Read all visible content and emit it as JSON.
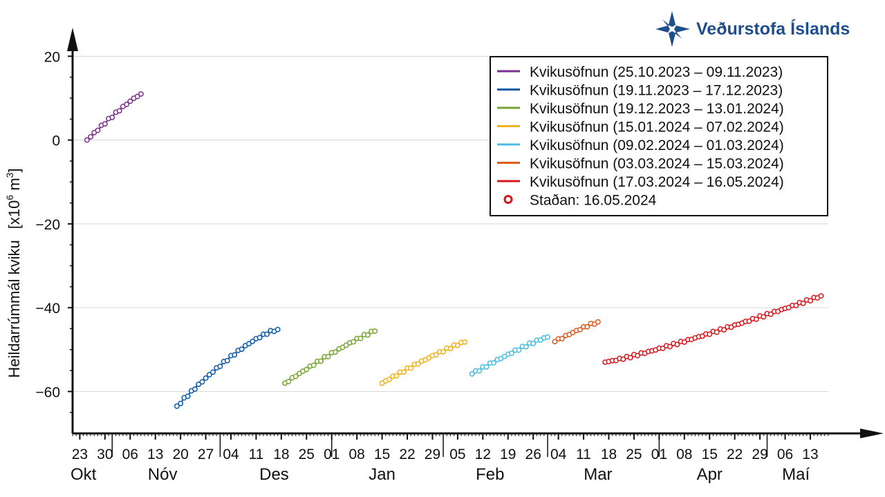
{
  "logo": {
    "text": "Veðurstofa Íslands",
    "color": "#1f4e8c"
  },
  "chart_data": {
    "type": "line",
    "ylabel_main": "Heildarrúmmál kviku",
    "ylabel_unit_prefix": "[x10",
    "ylabel_unit_exp": "6",
    "ylabel_unit_mid": " m",
    "ylabel_unit_exp2": "3",
    "ylabel_unit_suffix": "]",
    "ylim": [
      -70,
      26
    ],
    "yticks": [
      20,
      0,
      -20,
      -40,
      -60
    ],
    "ytick_labels": [
      "20",
      "0",
      "−20",
      "−40",
      "−60"
    ],
    "xlim": [
      "2023-10-21",
      "2024-05-18"
    ],
    "xticks": [
      {
        "date": "2023-10-23",
        "label": "23"
      },
      {
        "date": "2023-10-30",
        "label": "30"
      },
      {
        "date": "2023-11-06",
        "label": "06"
      },
      {
        "date": "2023-11-13",
        "label": "13"
      },
      {
        "date": "2023-11-20",
        "label": "20"
      },
      {
        "date": "2023-11-27",
        "label": "27"
      },
      {
        "date": "2023-12-04",
        "label": "04"
      },
      {
        "date": "2023-12-11",
        "label": "11"
      },
      {
        "date": "2023-12-18",
        "label": "18"
      },
      {
        "date": "2023-12-25",
        "label": "25"
      },
      {
        "date": "2024-01-01",
        "label": "01"
      },
      {
        "date": "2024-01-08",
        "label": "08"
      },
      {
        "date": "2024-01-15",
        "label": "15"
      },
      {
        "date": "2024-01-22",
        "label": "22"
      },
      {
        "date": "2024-01-29",
        "label": "29"
      },
      {
        "date": "2024-02-05",
        "label": "05"
      },
      {
        "date": "2024-02-12",
        "label": "12"
      },
      {
        "date": "2024-02-19",
        "label": "19"
      },
      {
        "date": "2024-02-26",
        "label": "26"
      },
      {
        "date": "2024-03-04",
        "label": "04"
      },
      {
        "date": "2024-03-11",
        "label": "11"
      },
      {
        "date": "2024-03-18",
        "label": "18"
      },
      {
        "date": "2024-03-25",
        "label": "25"
      },
      {
        "date": "2024-04-01",
        "label": "01"
      },
      {
        "date": "2024-04-08",
        "label": "08"
      },
      {
        "date": "2024-04-15",
        "label": "15"
      },
      {
        "date": "2024-04-22",
        "label": "22"
      },
      {
        "date": "2024-04-29",
        "label": "29"
      },
      {
        "date": "2024-05-06",
        "label": "06"
      },
      {
        "date": "2024-05-13",
        "label": "13"
      }
    ],
    "months": [
      {
        "date": "2023-10-24",
        "label": "Okt"
      },
      {
        "date": "2023-11-15",
        "label": "Nóv"
      },
      {
        "date": "2023-12-16",
        "label": "Des"
      },
      {
        "date": "2024-01-15",
        "label": "Jan"
      },
      {
        "date": "2024-02-14",
        "label": "Feb"
      },
      {
        "date": "2024-03-15",
        "label": "Mar"
      },
      {
        "date": "2024-04-15",
        "label": "Apr"
      },
      {
        "date": "2024-05-09",
        "label": "Maí"
      }
    ],
    "month_separators": [
      "2023-11-01",
      "2023-12-01",
      "2024-01-01",
      "2024-02-01",
      "2024-03-01",
      "2024-04-01",
      "2024-05-01"
    ],
    "grid": true,
    "legend_position": "top-right",
    "series": [
      {
        "name": "Kvikusöfnun (25.10.2023 – 09.11.2023)",
        "color": "#7b2f8e",
        "start": "2023-10-25",
        "end": "2023-11-09",
        "y_start": 0,
        "y_end": 11
      },
      {
        "name": "Kvikusöfnun (19.11.2023 – 17.12.2023)",
        "color": "#0d5aa7",
        "start": "2023-11-19",
        "end": "2023-12-17",
        "y_start": -63.5,
        "y_end": -45.2
      },
      {
        "name": "Kvikusöfnun (19.12.2023 – 13.01.2024)",
        "color": "#74a532",
        "start": "2023-12-19",
        "end": "2024-01-13",
        "y_start": -58,
        "y_end": -45.6
      },
      {
        "name": "Kvikusöfnun (15.01.2024 – 07.02.2024)",
        "color": "#f0b21c",
        "start": "2024-01-15",
        "end": "2024-02-07",
        "y_start": -58,
        "y_end": -48.2
      },
      {
        "name": "Kvikusöfnun (09.02.2024 – 01.03.2024)",
        "color": "#49bde0",
        "start": "2024-02-09",
        "end": "2024-03-01",
        "y_start": -55.8,
        "y_end": -47
      },
      {
        "name": "Kvikusöfnun (03.03.2024 – 15.03.2024)",
        "color": "#de5b1f",
        "start": "2024-03-03",
        "end": "2024-03-15",
        "y_start": -48.1,
        "y_end": -43.4
      },
      {
        "name": "Kvikusöfnun (17.03.2024 – 16.05.2024)",
        "color": "#d8171b",
        "start": "2024-03-17",
        "end": "2024-05-16",
        "y_start": -53,
        "y_end": -37.2
      }
    ],
    "current_marker": {
      "name": "Staðan: 16.05.2024",
      "color": "#d8171b"
    }
  }
}
